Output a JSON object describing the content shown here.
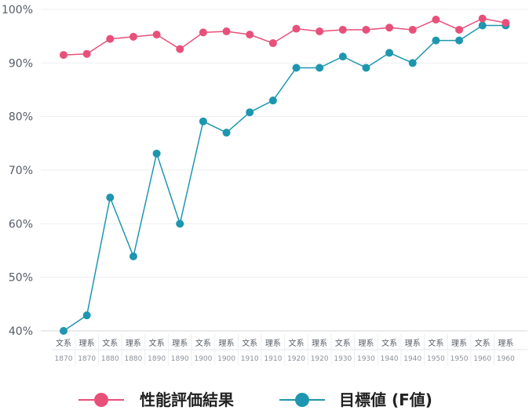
{
  "chart_data": {
    "type": "line",
    "categories": [
      {
        "label": "文系",
        "year": "1870"
      },
      {
        "label": "理系",
        "year": "1870"
      },
      {
        "label": "文系",
        "year": "1880"
      },
      {
        "label": "理系",
        "year": "1880"
      },
      {
        "label": "文系",
        "year": "1890"
      },
      {
        "label": "理系",
        "year": "1890"
      },
      {
        "label": "文系",
        "year": "1900"
      },
      {
        "label": "理系",
        "year": "1900"
      },
      {
        "label": "文系",
        "year": "1910"
      },
      {
        "label": "理系",
        "year": "1910"
      },
      {
        "label": "文系",
        "year": "1920"
      },
      {
        "label": "理系",
        "year": "1920"
      },
      {
        "label": "文系",
        "year": "1930"
      },
      {
        "label": "理系",
        "year": "1930"
      },
      {
        "label": "文系",
        "year": "1940"
      },
      {
        "label": "理系",
        "year": "1940"
      },
      {
        "label": "文系",
        "year": "1950"
      },
      {
        "label": "理系",
        "year": "1950"
      },
      {
        "label": "文系",
        "year": "1960"
      },
      {
        "label": "理系",
        "year": "1960"
      }
    ],
    "series": [
      {
        "name": "性能評価結果",
        "color": "#e8507a",
        "values": [
          91.5,
          91.7,
          94.5,
          94.9,
          95.3,
          92.6,
          95.7,
          95.9,
          95.3,
          93.7,
          96.4,
          95.9,
          96.2,
          96.2,
          96.6,
          96.2,
          98.1,
          96.2,
          98.3,
          97.5
        ]
      },
      {
        "name": "目標値 (F値)",
        "color": "#1e96b0",
        "values": [
          40.0,
          42.9,
          64.9,
          53.9,
          73.1,
          60.0,
          79.1,
          77.0,
          80.8,
          83.0,
          89.1,
          89.1,
          91.2,
          89.1,
          91.9,
          90.0,
          94.2,
          94.2,
          97.0,
          97.0
        ]
      }
    ],
    "ylim": [
      40,
      100
    ],
    "yticks": [
      "40%",
      "50%",
      "60%",
      "70%",
      "80%",
      "90%",
      "100%"
    ],
    "ytick_values": [
      40,
      50,
      60,
      70,
      80,
      90,
      100
    ],
    "grid": true,
    "legend_position": "bottom"
  }
}
